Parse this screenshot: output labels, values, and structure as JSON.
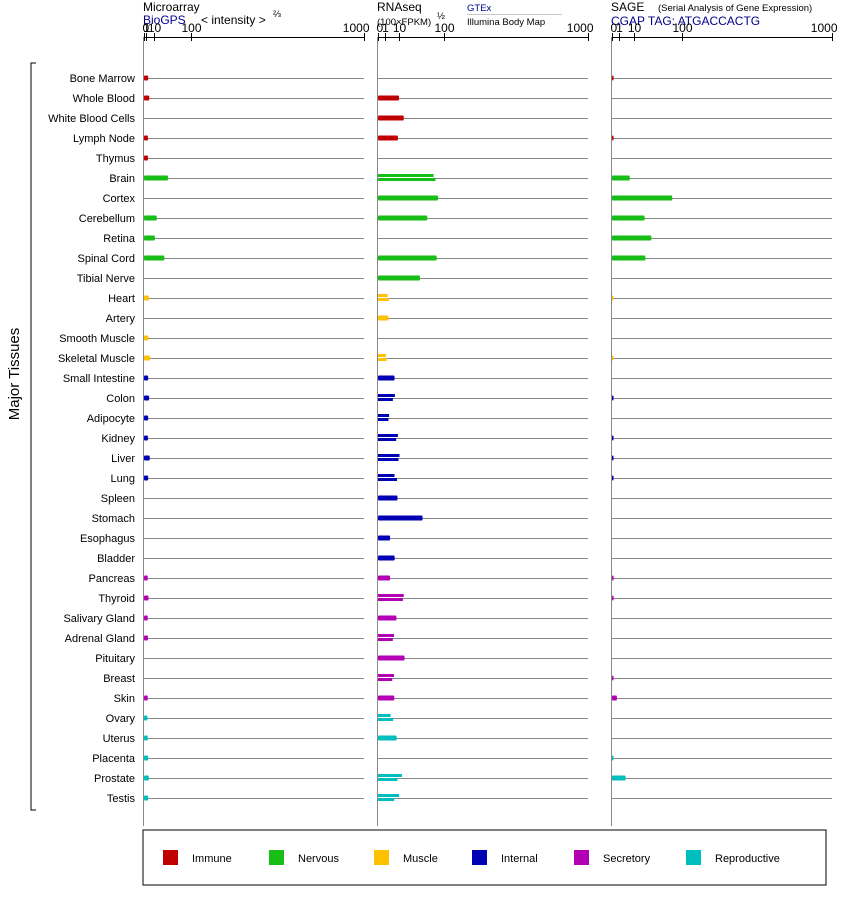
{
  "chart_data": {
    "type": "bar",
    "title": "",
    "ylabel": "Major Tissues",
    "tissues": [
      "Bone Marrow",
      "Whole Blood",
      "White Blood Cells",
      "Lymph Node",
      "Thymus",
      "Brain",
      "Cortex",
      "Cerebellum",
      "Retina",
      "Spinal Cord",
      "Tibial Nerve",
      "Heart",
      "Artery",
      "Smooth Muscle",
      "Skeletal Muscle",
      "Small Intestine",
      "Colon",
      "Adipocyte",
      "Kidney",
      "Liver",
      "Lung",
      "Spleen",
      "Stomach",
      "Esophagus",
      "Bladder",
      "Pancreas",
      "Thyroid",
      "Salivary Gland",
      "Adrenal Gland",
      "Pituitary",
      "Breast",
      "Skin",
      "Ovary",
      "Uterus",
      "Placenta",
      "Prostate",
      "Testis"
    ],
    "groups": [
      "immune",
      "immune",
      "immune",
      "immune",
      "immune",
      "nervous",
      "nervous",
      "nervous",
      "nervous",
      "nervous",
      "nervous",
      "muscle",
      "muscle",
      "muscle",
      "muscle",
      "internal",
      "internal",
      "internal",
      "internal",
      "internal",
      "internal",
      "internal",
      "internal",
      "internal",
      "internal",
      "secretory",
      "secretory",
      "secretory",
      "secretory",
      "secretory",
      "secretory",
      "secretory",
      "reproductive",
      "reproductive",
      "reproductive",
      "reproductive",
      "reproductive"
    ],
    "colors": {
      "immune": "#c00000",
      "nervous": "#16be16",
      "muscle": "#ffc000",
      "internal": "#0000b4",
      "secretory": "#b400b4",
      "reproductive": "#00bebe"
    },
    "legend": [
      {
        "key": "immune",
        "label": "Immune"
      },
      {
        "key": "nervous",
        "label": "Nervous"
      },
      {
        "key": "muscle",
        "label": "Muscle"
      },
      {
        "key": "internal",
        "label": "Internal"
      },
      {
        "key": "secretory",
        "label": "Secretory"
      },
      {
        "key": "reproductive",
        "label": "Reproductive"
      }
    ],
    "panels": [
      {
        "id": "microarray",
        "title": "Microarray",
        "source": "BioGPS",
        "scale_label": "< intensity >",
        "scale_exp": "⅔",
        "ticks": [
          "0",
          "1",
          "10",
          "100",
          "1000"
        ],
        "exponent": 0.6667,
        "xmax": 1000,
        "values": [
          [
            2.6
          ],
          [
            3.7
          ],
          [],
          [
            2.4
          ],
          [
            2.4
          ],
          [
            36
          ],
          [],
          [
            14
          ],
          [
            11
          ],
          [
            28
          ],
          [],
          [
            3.2
          ],
          [],
          [
            2.8
          ],
          [
            4.6
          ],
          [
            2.6
          ],
          [
            3.5
          ],
          [
            2.6
          ],
          [
            2.4
          ],
          [
            4.2
          ],
          [
            2.6
          ],
          [],
          [],
          [],
          [],
          [
            2.2
          ],
          [
            2.9
          ],
          [
            2.2
          ],
          [
            2.4
          ],
          [],
          [],
          [
            2.2
          ],
          [
            1.9
          ],
          [
            2.2
          ],
          [
            2.6
          ],
          [
            3.2
          ],
          [
            2.6
          ]
        ]
      },
      {
        "id": "rnaseq",
        "title": "RNAseq",
        "scale_label": "(100×FPKM)",
        "scale_exp": "½",
        "source_a": "GTEx",
        "source_b": "Illumina Body Map",
        "ticks": [
          "0",
          "1",
          "10",
          "100",
          "1000"
        ],
        "exponent": 0.5,
        "xmax": 1000,
        "values": [
          [],
          [
            10
          ],
          [
            15
          ],
          [
            9
          ],
          [],
          [
            70,
            75
          ],
          [
            82
          ],
          [
            55
          ],
          [],
          [
            78
          ],
          [
            40
          ],
          [
            2.1,
            2.7
          ],
          [
            2.5
          ],
          [],
          [
            1.4,
            1.7
          ],
          [
            6.2
          ],
          [
            6.5,
            5.0
          ],
          [
            2.8,
            2.5
          ],
          [
            9,
            7.5
          ],
          [
            10.5,
            9.5
          ],
          [
            6.2,
            8.2
          ],
          [
            8.6
          ],
          [
            45
          ],
          [
            3.3
          ],
          [
            6.3
          ],
          [
            3.3
          ],
          [
            15,
            14
          ],
          [
            7.7
          ],
          [
            5.8,
            5.0
          ],
          [
            16
          ],
          [
            5.8,
            4.6
          ],
          [
            6.0
          ],
          [
            3.6,
            5.2
          ],
          [
            7.9
          ],
          [],
          [
            13,
            8.6
          ],
          [
            10,
            6.0
          ]
        ]
      },
      {
        "id": "sage",
        "title": "SAGE",
        "title_note": "(Serial Analysis of Gene Expression)",
        "source": "CGAP TAG: ATGACCACTG",
        "ticks": [
          "0",
          "1",
          "10",
          "100",
          "1000"
        ],
        "exponent": 0.5,
        "xmax": 1000,
        "values": [
          [
            0.05
          ],
          [],
          [],
          [
            0.05
          ],
          [],
          [
            6.5
          ],
          [
            75
          ],
          [
            22
          ],
          [
            32
          ],
          [
            23
          ],
          [],
          [
            0.02
          ],
          [],
          [],
          [
            0.02
          ],
          [],
          [
            0.05
          ],
          [],
          [
            0.05
          ],
          [
            0.05
          ],
          [
            0.05
          ],
          [],
          [],
          [],
          [],
          [
            0.05
          ],
          [
            0.05
          ],
          [],
          [],
          [],
          [
            0.03
          ],
          [
            0.5
          ],
          [],
          [],
          [
            0.05
          ],
          [
            3.8
          ],
          []
        ]
      }
    ]
  }
}
